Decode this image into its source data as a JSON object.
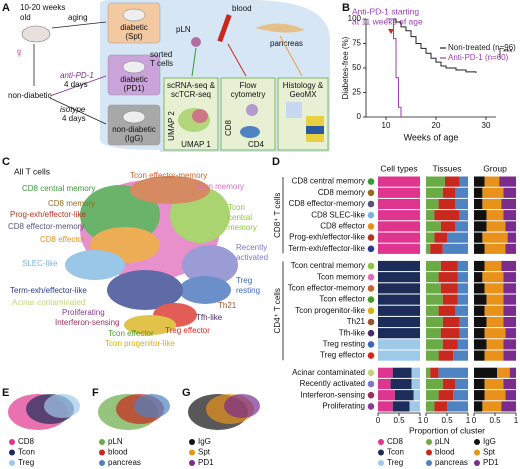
{
  "panel_labels": [
    "A",
    "B",
    "C",
    "D",
    "E",
    "F",
    "G"
  ],
  "panel_a": {
    "age": [
      "10-20 weeks",
      "old"
    ],
    "sex": "♀",
    "aging": "aging",
    "diabetic_spt": [
      "diabetic",
      "(Spt)"
    ],
    "diabetic_pd1": [
      "diabetic",
      "(PD1)"
    ],
    "nondiabetic_igg": [
      "non-diabetic",
      "(IgG)"
    ],
    "nondiabetic": "non-diabetic",
    "anti_pd1": "anti-PD-1",
    "anti_days": "4 days",
    "isotype": "isotype",
    "isotype_days": "4 days",
    "pln": "pLN",
    "blood": "blood",
    "pancreas": "pancreas",
    "sorted": [
      "sorted",
      "T cells"
    ],
    "scrna": [
      "scRNA-seq &",
      "scTCR-seq"
    ],
    "umap2": "UMAP 2",
    "umap1": "UMAP 1",
    "flow": [
      "Flow",
      "cytometry"
    ],
    "cd8": "CD8",
    "cd4": "CD4",
    "histology": [
      "Histology &",
      "GeoMX"
    ]
  },
  "panel_c": {
    "title": "All T cells",
    "clusters": [
      {
        "label": [
          "Tcon effector-memory"
        ],
        "color": "#c8642e"
      },
      {
        "label": [
          "Tcon memory"
        ],
        "color": "#e06cbc"
      },
      {
        "label": [
          "CD8 central memory"
        ],
        "color": "#3a9a3a"
      },
      {
        "label": [
          "CD8 memory"
        ],
        "color": "#9a6a1a"
      },
      {
        "label": [
          "Tcon",
          "central",
          "memory"
        ],
        "color": "#8dc63f"
      },
      {
        "label": [
          "Prog-exh/effector-like"
        ],
        "color": "#b5341e"
      },
      {
        "label": [
          "CD8 effector-memory"
        ],
        "color": "#55557a"
      },
      {
        "label": [
          "CD8 effector"
        ],
        "color": "#e8921b"
      },
      {
        "label": [
          "Recently",
          "activated"
        ],
        "color": "#7a7ac8"
      },
      {
        "label": [
          "SLEC-like"
        ],
        "color": "#79b4df"
      },
      {
        "label": [
          "Treg",
          "resting"
        ],
        "color": "#3a6ab8"
      },
      {
        "label": [
          "Term-exh/effector-like"
        ],
        "color": "#2a3a8a"
      },
      {
        "label": [
          "Acinar-contaminated"
        ],
        "color": "#c4d47a"
      },
      {
        "label": [
          "Th21"
        ],
        "color": "#a0522d"
      },
      {
        "label": [
          "Proliferating"
        ],
        "color": "#8b3a9a"
      },
      {
        "label": [
          "Tfh-like"
        ],
        "color": "#4b2a6a"
      },
      {
        "label": [
          "Interferon-sensing"
        ],
        "color": "#9a3060"
      },
      {
        "label": [
          "Tcon effector"
        ],
        "color": "#4a9a2a"
      },
      {
        "label": [
          "Treg effector"
        ],
        "color": "#d8281e"
      },
      {
        "label": [
          "Tcon progenitor-like"
        ],
        "color": "#d8b010"
      }
    ]
  },
  "chart_data": [
    {
      "type": "line",
      "step": true,
      "annotation": [
        "Anti-PD-1 starting",
        "at 11 weeks of age"
      ],
      "ylabel": "Diabetes-free (%)",
      "xlabel": "Weeks of age",
      "significance": "***",
      "xlim": [
        6,
        32
      ],
      "ylim": [
        0,
        100
      ],
      "xticks": [
        10,
        20,
        30
      ],
      "yticks": [
        0,
        25,
        50,
        75,
        100
      ],
      "series": [
        {
          "name": "Non-treated (n=96)",
          "color": "#222222",
          "x": [
            10,
            12,
            13,
            14,
            15,
            16,
            17,
            18,
            19,
            20,
            21,
            22,
            24,
            26,
            28
          ],
          "values": [
            100,
            97,
            92,
            88,
            82,
            75,
            70,
            65,
            60,
            56,
            52,
            50,
            48,
            46,
            45
          ]
        },
        {
          "name": "Anti-PD-1 (n=60)",
          "color": "#9b3fb5",
          "x": [
            10,
            11,
            11.5,
            12,
            12.5,
            13
          ],
          "values": [
            100,
            100,
            80,
            40,
            10,
            0
          ]
        }
      ]
    },
    {
      "type": "stacked-barh",
      "xlabel": "Proportion of cluster",
      "xlim": [
        0,
        1
      ],
      "xticks": [
        0,
        0.5,
        1
      ],
      "groups": [
        {
          "name": "CD8⁺ T cells",
          "categories": [
            "CD8 central memory",
            "CD8 memory",
            "CD8 effector-memory",
            "CD8 SLEC-like",
            "CD8 effector",
            "Prog-exh/effector-like",
            "Term-exh/effector-like"
          ],
          "colors": [
            "#3a9a3a",
            "#9a6a1a",
            "#55557a",
            "#79b4df",
            "#e8921b",
            "#b5341e",
            "#2a3a8a"
          ]
        },
        {
          "name": "CD4⁺ T cells",
          "categories": [
            "Tcon central memory",
            "Tcon memory",
            "Tcon effector-memory",
            "Tcon effector",
            "Tcon progenitor-like",
            "Th21",
            "Tfh-like",
            "Treg resting",
            "Treg effector"
          ],
          "colors": [
            "#8dc63f",
            "#e06cbc",
            "#c8642e",
            "#4a9a2a",
            "#d8b010",
            "#a0522d",
            "#4b2a6a",
            "#3a6ab8",
            "#d8281e"
          ]
        },
        {
          "categories": [
            "Acinar contaminated",
            "Recently activated",
            "Interferon-sensing",
            "Proliferating"
          ],
          "colors": [
            "#c4d47a",
            "#7a7ac8",
            "#9a3060",
            "#8b3a9a"
          ]
        }
      ],
      "panels": [
        {
          "title": "Cell types",
          "series": [
            {
              "name": "CD8",
              "color": "#e0358f",
              "values": [
                [
                  1,
                  1,
                  1,
                  1,
                  1,
                  1,
                  1
                ],
                [
                  0,
                  0,
                  0,
                  0,
                  0,
                  0,
                  0,
                  0,
                  0
                ],
                [
                  0.35,
                  0.3,
                  0.4,
                  0.35
                ]
              ]
            },
            {
              "name": "Tcon",
              "color": "#1c2d5a",
              "values": [
                [
                  0,
                  0,
                  0,
                  0,
                  0,
                  0,
                  0
                ],
                [
                  1,
                  1,
                  1,
                  1,
                  1,
                  1,
                  1,
                  0,
                  0
                ],
                [
                  0.45,
                  0.5,
                  0.45,
                  0.4
                ]
              ]
            },
            {
              "name": "Treg",
              "color": "#9ec9e8",
              "values": [
                [
                  0,
                  0,
                  0,
                  0,
                  0,
                  0,
                  0
                ],
                [
                  0,
                  0,
                  0,
                  0,
                  0,
                  0,
                  0,
                  1,
                  1
                ],
                [
                  0.2,
                  0.2,
                  0.15,
                  0.25
                ]
              ]
            }
          ]
        },
        {
          "title": "Tissues",
          "series": [
            {
              "name": "pLN",
              "color": "#6aab45",
              "values": [
                [
                  0.45,
                  0.4,
                  0.3,
                  0.2,
                  0.35,
                  0.2,
                  0.1
                ],
                [
                  0.35,
                  0.3,
                  0.35,
                  0.4,
                  0.3,
                  0.4,
                  0.35,
                  0.4,
                  0.3
                ],
                [
                  0.1,
                  0.4,
                  0.3,
                  0.2
                ]
              ]
            },
            {
              "name": "blood",
              "color": "#c8281e",
              "values": [
                [
                  0.35,
                  0.3,
                  0.4,
                  0.6,
                  0.35,
                  0.3,
                  0.3
                ],
                [
                  0.4,
                  0.45,
                  0.4,
                  0.35,
                  0.4,
                  0.4,
                  0.45,
                  0.35,
                  0.35
                ],
                [
                  0.2,
                  0.3,
                  0.35,
                  0.3
                ]
              ]
            },
            {
              "name": "pancreas",
              "color": "#4f82c0",
              "values": [
                [
                  0.2,
                  0.3,
                  0.3,
                  0.2,
                  0.3,
                  0.5,
                  0.6
                ],
                [
                  0.25,
                  0.25,
                  0.25,
                  0.25,
                  0.3,
                  0.2,
                  0.2,
                  0.25,
                  0.35
                ],
                [
                  0.7,
                  0.3,
                  0.35,
                  0.5
                ]
              ]
            }
          ]
        },
        {
          "title": "Group",
          "series": [
            {
              "name": "IgG",
              "color": "#111111",
              "values": [
                [
                  0.25,
                  0.2,
                  0.2,
                  0.3,
                  0.3,
                  0.2,
                  0.25
                ],
                [
                  0.25,
                  0.2,
                  0.25,
                  0.3,
                  0.25,
                  0.3,
                  0.25,
                  0.3,
                  0.25
                ],
                [
                  0.55,
                  0.25,
                  0.25,
                  0.2
                ]
              ]
            },
            {
              "name": "Spt",
              "color": "#e8921b",
              "values": [
                [
                  0.35,
                  0.5,
                  0.45,
                  0.4,
                  0.45,
                  0.6,
                  0.5
                ],
                [
                  0.4,
                  0.5,
                  0.45,
                  0.4,
                  0.45,
                  0.4,
                  0.5,
                  0.4,
                  0.45
                ],
                [
                  0.3,
                  0.45,
                  0.5,
                  0.45
                ]
              ]
            },
            {
              "name": "PD1",
              "color": "#7b2d8e",
              "values": [
                [
                  0.4,
                  0.3,
                  0.35,
                  0.3,
                  0.25,
                  0.2,
                  0.25
                ],
                [
                  0.35,
                  0.3,
                  0.3,
                  0.3,
                  0.3,
                  0.3,
                  0.25,
                  0.3,
                  0.3
                ],
                [
                  0.15,
                  0.3,
                  0.25,
                  0.35
                ]
              ]
            }
          ]
        }
      ]
    }
  ]
}
